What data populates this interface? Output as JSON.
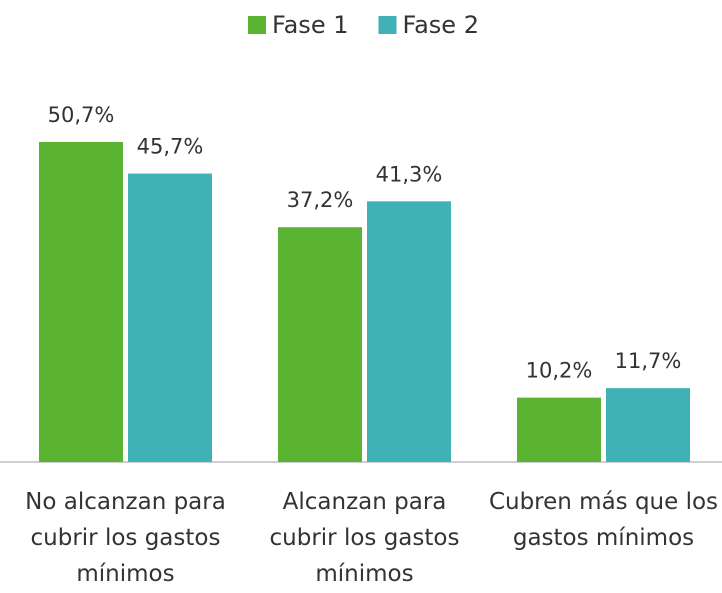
{
  "chart_data": {
    "type": "bar",
    "legend": "top",
    "categories": [
      "No alcanzan para cubrir los gastos mínimos",
      "Alcanzan para cubrir los gastos mínimos",
      "Cubren más que los gastos mínimos"
    ],
    "series": [
      {
        "name": "Fase 1",
        "color": "#5ab432",
        "values": [
          50.7,
          37.2,
          10.2
        ],
        "value_labels": [
          "50,7%",
          "37,2%",
          "10,2%"
        ]
      },
      {
        "name": "Fase 2",
        "color": "#40b1b5",
        "values": [
          45.7,
          41.3,
          11.7
        ],
        "value_labels": [
          "45,7%",
          "41,3%",
          "11,7%"
        ]
      }
    ]
  }
}
